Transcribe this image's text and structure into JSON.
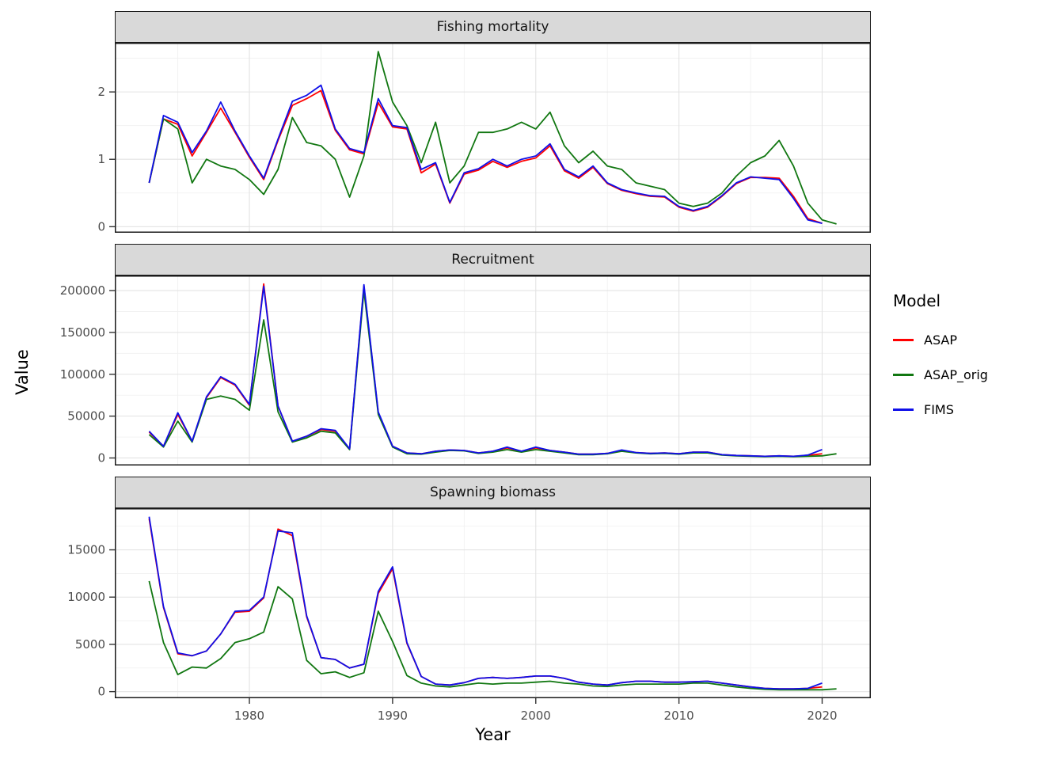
{
  "chart_data": {
    "type": "line",
    "xlabel": "Year",
    "ylabel": "Value",
    "legend_title": "Model",
    "legend_position": "right",
    "grid": true,
    "x": [
      1973,
      1974,
      1975,
      1976,
      1977,
      1978,
      1979,
      1980,
      1981,
      1982,
      1983,
      1984,
      1985,
      1986,
      1987,
      1988,
      1989,
      1990,
      1991,
      1992,
      1993,
      1994,
      1995,
      1996,
      1997,
      1998,
      1999,
      2000,
      2001,
      2002,
      2003,
      2004,
      2005,
      2006,
      2007,
      2008,
      2009,
      2010,
      2011,
      2012,
      2013,
      2014,
      2015,
      2016,
      2017,
      2018,
      2019,
      2020,
      2021
    ],
    "x_domain": [
      1970.6,
      2023.4
    ],
    "x_major_ticks": [
      1980,
      1990,
      2000,
      2010,
      2020
    ],
    "x_minor_ticks": [
      1975,
      1985,
      1995,
      2005,
      2015
    ],
    "series": [
      {
        "name": "ASAP",
        "color": "#ff0000"
      },
      {
        "name": "ASAP_orig",
        "color": "#117711"
      },
      {
        "name": "FIMS",
        "color": "#0f0fe8"
      }
    ],
    "panels": [
      {
        "title": "Fishing mortality",
        "ylim": [
          -0.09,
          2.73
        ],
        "yticks": [
          0,
          1,
          2
        ],
        "values": {
          "ASAP": [
            0.65,
            1.6,
            1.52,
            1.05,
            1.4,
            1.76,
            1.4,
            1.03,
            0.7,
            1.28,
            1.8,
            1.9,
            2.02,
            1.43,
            1.14,
            1.08,
            1.84,
            1.48,
            1.45,
            0.8,
            0.93,
            0.35,
            0.78,
            0.84,
            0.97,
            0.88,
            0.97,
            1.02,
            1.2,
            0.83,
            0.72,
            0.88,
            0.64,
            0.54,
            0.49,
            0.45,
            0.44,
            0.29,
            0.23,
            0.29,
            0.45,
            0.64,
            0.73,
            0.73,
            0.72,
            0.45,
            0.12,
            0.05,
            null
          ],
          "ASAP_orig": [
            0.65,
            1.6,
            1.45,
            0.65,
            1.0,
            0.9,
            0.85,
            0.7,
            0.48,
            0.85,
            1.62,
            1.25,
            1.2,
            1.0,
            0.44,
            1.05,
            2.6,
            1.85,
            1.5,
            0.95,
            1.55,
            0.65,
            0.9,
            1.4,
            1.4,
            1.45,
            1.55,
            1.45,
            1.7,
            1.2,
            0.95,
            1.12,
            0.9,
            0.85,
            0.65,
            0.6,
            0.55,
            0.35,
            0.3,
            0.35,
            0.5,
            0.75,
            0.95,
            1.05,
            1.28,
            0.9,
            0.35,
            0.1,
            0.04
          ],
          "FIMS": [
            0.65,
            1.65,
            1.55,
            1.1,
            1.42,
            1.85,
            1.42,
            1.05,
            0.72,
            1.3,
            1.86,
            1.95,
            2.1,
            1.45,
            1.16,
            1.1,
            1.9,
            1.5,
            1.47,
            0.85,
            0.95,
            0.36,
            0.8,
            0.86,
            1.0,
            0.9,
            1.0,
            1.05,
            1.23,
            0.85,
            0.74,
            0.9,
            0.65,
            0.55,
            0.5,
            0.46,
            0.45,
            0.3,
            0.24,
            0.3,
            0.46,
            0.65,
            0.74,
            0.72,
            0.7,
            0.42,
            0.1,
            0.05,
            null
          ]
        }
      },
      {
        "title": "Recruitment",
        "ylim": [
          -9000,
          218000
        ],
        "yticks": [
          0,
          50000,
          100000,
          150000,
          200000
        ],
        "values": {
          "ASAP": [
            31000,
            14000,
            52000,
            20000,
            72000,
            96000,
            87000,
            63000,
            208000,
            62000,
            20000,
            26000,
            34000,
            32000,
            11000,
            205000,
            54000,
            14000,
            6000,
            5000,
            8000,
            9500,
            9000,
            6000,
            8000,
            12000,
            8000,
            12000,
            9000,
            7000,
            4500,
            4500,
            5500,
            9000,
            6500,
            5500,
            6000,
            5000,
            7000,
            7000,
            4000,
            3000,
            2500,
            2000,
            2500,
            2000,
            3000,
            5000,
            null
          ],
          "ASAP_orig": [
            28000,
            13000,
            44000,
            19000,
            70000,
            74000,
            70000,
            57000,
            165000,
            55000,
            19000,
            24000,
            32000,
            30000,
            10000,
            200000,
            52000,
            13000,
            5000,
            4500,
            7000,
            9000,
            8500,
            5500,
            7000,
            10000,
            7000,
            10000,
            8000,
            6000,
            4000,
            4000,
            5000,
            8000,
            6000,
            5000,
            5500,
            4500,
            6000,
            6000,
            3500,
            2500,
            2000,
            1500,
            2000,
            1500,
            2000,
            2500,
            5000
          ],
          "FIMS": [
            32000,
            14000,
            54000,
            20000,
            73000,
            97000,
            88000,
            64000,
            205000,
            62000,
            20000,
            26000,
            35000,
            33000,
            11000,
            207000,
            55000,
            14000,
            6000,
            5000,
            8000,
            9500,
            9000,
            6000,
            8000,
            13000,
            8000,
            13000,
            9000,
            7000,
            4500,
            4500,
            5500,
            9500,
            6500,
            5500,
            6000,
            5000,
            7000,
            7000,
            4000,
            3000,
            2500,
            2000,
            2500,
            2000,
            3500,
            10000,
            null
          ]
        }
      },
      {
        "title": "Spawning biomass",
        "ylim": [
          -700,
          19400
        ],
        "yticks": [
          0,
          5000,
          10000,
          15000
        ],
        "values": {
          "ASAP": [
            18300,
            8900,
            4000,
            3800,
            4300,
            6100,
            8400,
            8500,
            9900,
            17200,
            16500,
            7900,
            3600,
            3400,
            2500,
            2900,
            10400,
            13000,
            5100,
            1600,
            800,
            700,
            950,
            1400,
            1500,
            1400,
            1500,
            1650,
            1650,
            1400,
            1000,
            800,
            700,
            950,
            1100,
            1100,
            1000,
            1000,
            1050,
            1100,
            900,
            700,
            500,
            350,
            300,
            300,
            350,
            500,
            null
          ],
          "ASAP_orig": [
            11700,
            5200,
            1800,
            2600,
            2500,
            3500,
            5200,
            5600,
            6300,
            11100,
            9800,
            3300,
            1900,
            2100,
            1500,
            2000,
            8500,
            5300,
            1700,
            900,
            600,
            500,
            700,
            900,
            800,
            900,
            900,
            1000,
            1100,
            900,
            800,
            600,
            550,
            700,
            800,
            800,
            800,
            800,
            900,
            900,
            700,
            500,
            350,
            250,
            200,
            200,
            200,
            200,
            300
          ],
          "FIMS": [
            18500,
            9000,
            4100,
            3800,
            4300,
            6100,
            8500,
            8600,
            10000,
            17000,
            16800,
            8000,
            3600,
            3400,
            2500,
            2900,
            10600,
            13200,
            5200,
            1600,
            800,
            700,
            950,
            1400,
            1500,
            1400,
            1500,
            1650,
            1650,
            1400,
            1000,
            800,
            700,
            950,
            1100,
            1100,
            1000,
            1000,
            1050,
            1100,
            900,
            700,
            500,
            350,
            300,
            300,
            350,
            900,
            null
          ]
        }
      }
    ],
    "colors": {
      "grid_major": "#e3e3e3",
      "grid_minor": "#f1f1f1",
      "panel_border": "#1a1a1a",
      "strip_fill": "#d9d9d9",
      "tick_mark": "#333333",
      "tick_label": "#4d4d4d"
    }
  }
}
